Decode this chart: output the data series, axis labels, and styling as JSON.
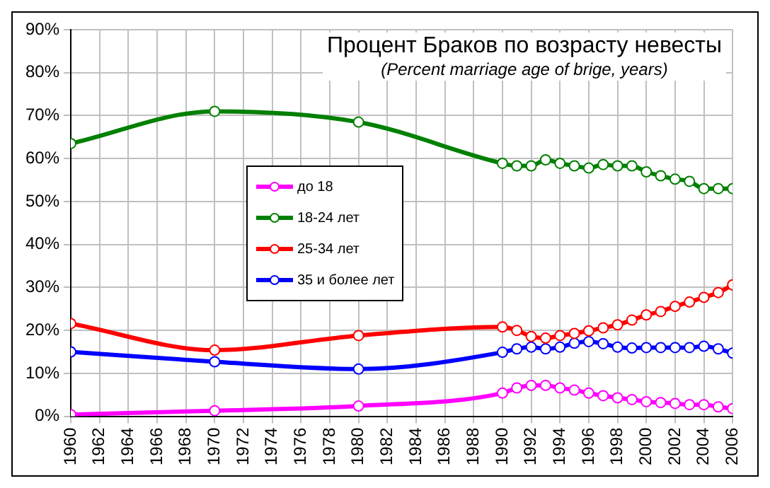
{
  "chart_data": {
    "type": "line",
    "title": "Процент Браков по возрасту невесты",
    "subtitle": "(Percent marriage age of brige, years)",
    "x": [
      1960,
      1970,
      1980,
      1990,
      1991,
      1992,
      1993,
      1994,
      1995,
      1996,
      1997,
      1998,
      1999,
      2000,
      2001,
      2002,
      2003,
      2004,
      2005,
      2006
    ],
    "series": [
      {
        "name": "до 18",
        "color": "#ff00ff",
        "values": [
          0.4,
          1.3,
          2.4,
          5.4,
          6.6,
          7.2,
          7.2,
          6.6,
          6.1,
          5.4,
          4.8,
          4.3,
          3.9,
          3.4,
          3.2,
          3.0,
          2.7,
          2.7,
          2.2,
          1.8
        ]
      },
      {
        "name": "18-24 лет",
        "color": "#008000",
        "values": [
          63.5,
          71,
          68.5,
          58.9,
          58.3,
          58.3,
          59.7,
          58.9,
          58.3,
          57.8,
          58.6,
          58.3,
          58.3,
          56.9,
          56,
          55.2,
          54.7,
          53,
          53,
          53
        ]
      },
      {
        "name": "25-34 лет",
        "color": "#ff0000",
        "values": [
          21.6,
          15.4,
          18.8,
          20.8,
          20,
          18.6,
          18.2,
          18.8,
          19.3,
          19.9,
          20.6,
          21.3,
          22.4,
          23.6,
          24.4,
          25.6,
          26.6,
          27.7,
          28.8,
          30.6
        ]
      },
      {
        "name": "35 и более лет",
        "color": "#0000ff",
        "values": [
          15,
          12.7,
          11,
          14.9,
          15.7,
          16.1,
          15.7,
          16.1,
          17,
          17.4,
          16.9,
          16.1,
          15.9,
          16,
          16,
          16,
          16,
          16.3,
          15.7,
          14.7
        ]
      }
    ],
    "xlim": [
      1960,
      2006
    ],
    "xticks": [
      1960,
      1962,
      1964,
      1966,
      1968,
      1970,
      1972,
      1974,
      1976,
      1978,
      1980,
      1982,
      1984,
      1986,
      1988,
      1990,
      1992,
      1994,
      1996,
      1998,
      2000,
      2002,
      2004,
      2006
    ],
    "ylim": [
      0,
      90
    ],
    "yticks": [
      {
        "value": 0,
        "label": "0%"
      },
      {
        "value": 10,
        "label": "10%"
      },
      {
        "value": 20,
        "label": "20%"
      },
      {
        "value": 30,
        "label": "30%"
      },
      {
        "value": 40,
        "label": "40%"
      },
      {
        "value": 50,
        "label": "50%"
      },
      {
        "value": 60,
        "label": "60%"
      },
      {
        "value": 70,
        "label": "70%"
      },
      {
        "value": 80,
        "label": "80%"
      },
      {
        "value": 90,
        "label": "90%"
      }
    ],
    "grid": true,
    "legend": "center left",
    "marker": "circle",
    "line_style": "solid"
  }
}
